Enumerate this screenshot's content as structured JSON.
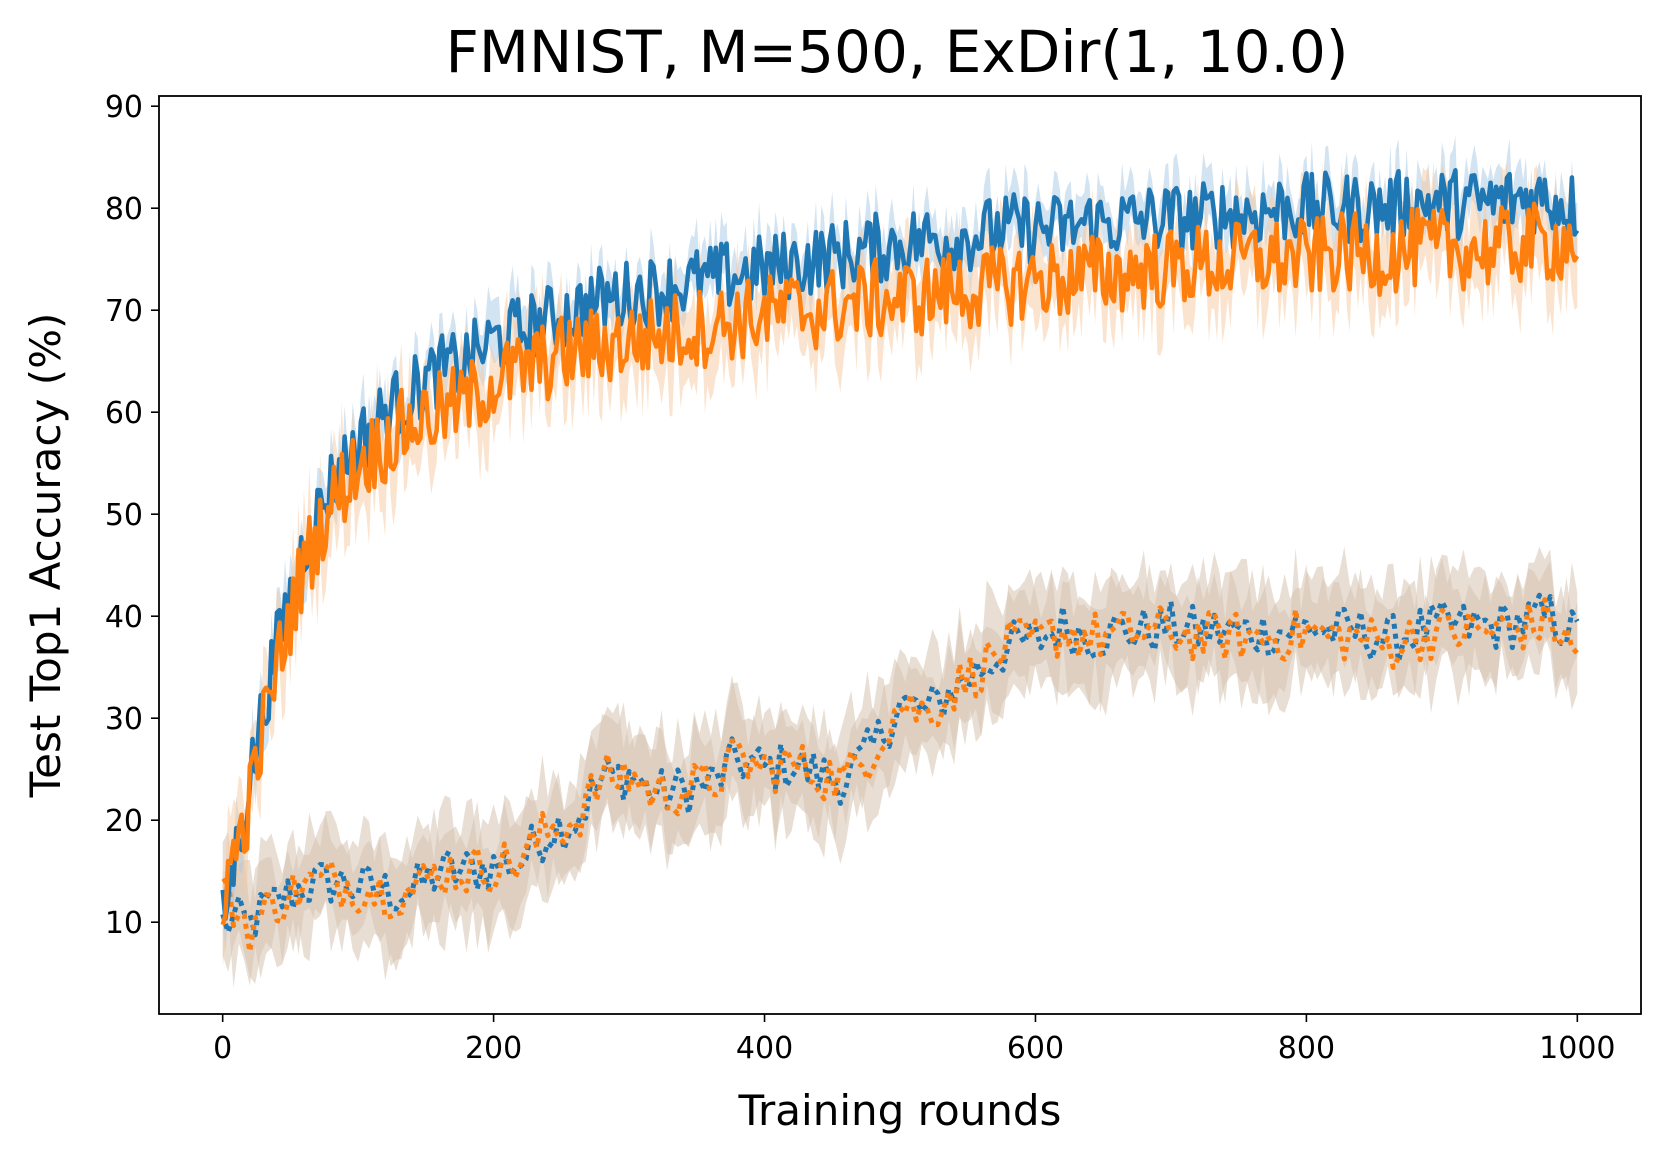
{
  "chart_data": {
    "type": "line",
    "title": "FMNIST, M=500, ExDir(1, 10.0)",
    "xlabel": "Training rounds",
    "ylabel": "Test Top1 Accuracy (%)",
    "xlim": [
      -47,
      1047
    ],
    "ylim": [
      1,
      91
    ],
    "xticks": [
      0,
      200,
      400,
      600,
      800,
      1000
    ],
    "yticks": [
      10,
      20,
      30,
      40,
      50,
      60,
      70,
      80,
      90
    ],
    "legend": "none",
    "colors": {
      "blue": "#1f77b4",
      "orange": "#ff7f0e",
      "blue_band": "#a6c8e4",
      "orange_band": "#f8c9a0",
      "mixed_band": "#d6c3b0"
    },
    "series": [
      {
        "name": "solid-blue",
        "style": "solid",
        "color": "#1f77b4",
        "band_color": "#a6c8e4",
        "x": [
          0,
          10,
          20,
          30,
          40,
          50,
          60,
          70,
          80,
          100,
          120,
          140,
          160,
          180,
          200,
          220,
          240,
          260,
          280,
          300,
          320,
          340,
          360,
          380,
          400,
          420,
          440,
          460,
          480,
          500,
          520,
          540,
          560,
          580,
          600,
          620,
          640,
          660,
          680,
          700,
          720,
          740,
          760,
          780,
          800,
          820,
          840,
          860,
          880,
          900,
          920,
          940,
          960,
          980,
          1000
        ],
        "values": [
          10,
          17,
          24,
          31,
          37,
          42,
          47,
          50,
          53,
          57,
          60,
          62,
          64,
          65,
          67,
          68,
          69,
          70,
          71,
          71.5,
          72,
          72.5,
          73,
          73.5,
          74,
          74.5,
          75,
          75.5,
          76,
          76.5,
          77,
          77,
          77.5,
          78,
          78,
          78,
          78.5,
          78.5,
          79,
          79,
          79,
          79.5,
          79.5,
          80,
          80,
          80,
          80,
          80,
          80.5,
          80.5,
          80.5,
          80.5,
          81,
          81,
          80
        ],
        "band": 2.5,
        "noise": 3.5
      },
      {
        "name": "solid-orange",
        "style": "solid",
        "color": "#ff7f0e",
        "band_color": "#f8c9a0",
        "x": [
          0,
          10,
          20,
          30,
          40,
          50,
          60,
          70,
          80,
          100,
          120,
          140,
          160,
          180,
          200,
          220,
          240,
          260,
          280,
          300,
          320,
          340,
          360,
          380,
          400,
          420,
          440,
          460,
          480,
          500,
          520,
          540,
          560,
          580,
          600,
          620,
          640,
          660,
          680,
          700,
          720,
          740,
          760,
          780,
          800,
          820,
          840,
          860,
          880,
          900,
          920,
          940,
          960,
          980,
          1000
        ],
        "values": [
          13,
          17,
          22,
          29,
          35,
          40,
          45,
          48,
          51,
          55,
          57,
          59,
          60,
          61,
          63,
          64,
          65,
          66,
          66.5,
          67,
          67.5,
          68,
          68.5,
          69,
          69.5,
          70,
          70,
          70.5,
          71,
          71,
          71.5,
          72,
          72,
          72.5,
          73,
          73,
          73.5,
          73.5,
          74,
          74,
          74.5,
          74.5,
          75,
          75,
          75,
          75.5,
          75.5,
          75.5,
          76,
          76,
          76,
          76,
          76.5,
          76.5,
          77
        ],
        "band": 4,
        "noise": 4
      },
      {
        "name": "dotted-blue",
        "style": "dotted",
        "color": "#1f77b4",
        "band_color": "#d6c3b0",
        "x": [
          0,
          20,
          40,
          60,
          80,
          100,
          120,
          140,
          160,
          180,
          200,
          220,
          240,
          260,
          280,
          300,
          320,
          340,
          360,
          380,
          400,
          420,
          440,
          460,
          480,
          500,
          520,
          540,
          560,
          580,
          600,
          620,
          640,
          660,
          680,
          700,
          720,
          740,
          760,
          780,
          800,
          820,
          840,
          860,
          880,
          900,
          920,
          940,
          960,
          980,
          1000
        ],
        "values": [
          10,
          10,
          12,
          13.5,
          14,
          13.5,
          13,
          13,
          15,
          15,
          15.5,
          16,
          19,
          20,
          24,
          24.5,
          22.5,
          23,
          23.5,
          26,
          25,
          25.5,
          24.5,
          24,
          27,
          31.5,
          30.5,
          33,
          35,
          37,
          37.5,
          39,
          38,
          38.5,
          38.5,
          39,
          38.5,
          38.5,
          38.5,
          38.5,
          39,
          38.5,
          38.5,
          37.5,
          38.5,
          39,
          39,
          39,
          39.5,
          40,
          38
        ],
        "band": 4.5,
        "noise": 2.5
      },
      {
        "name": "dotted-orange",
        "style": "dotted",
        "color": "#ff7f0e",
        "band_color": "#d6c3b0",
        "x": [
          0,
          20,
          40,
          60,
          80,
          100,
          120,
          140,
          160,
          180,
          200,
          220,
          240,
          260,
          280,
          300,
          320,
          340,
          360,
          380,
          400,
          420,
          440,
          460,
          480,
          500,
          520,
          540,
          560,
          580,
          600,
          620,
          640,
          660,
          680,
          700,
          720,
          740,
          760,
          780,
          800,
          820,
          840,
          860,
          880,
          900,
          920,
          940,
          960,
          980,
          1000
        ],
        "values": [
          13,
          9.5,
          12,
          13.5,
          14,
          13.5,
          13,
          13,
          15,
          15,
          15.5,
          16,
          19,
          20,
          24,
          24.5,
          22.5,
          23,
          23.5,
          26,
          25,
          25.5,
          24.5,
          24,
          27,
          31.5,
          30.5,
          33,
          35,
          37,
          37.5,
          38.5,
          38,
          38,
          38.5,
          38.5,
          38,
          38,
          38,
          38,
          38.5,
          38,
          38,
          37,
          38,
          38.5,
          38.5,
          38.5,
          39,
          39.5,
          36
        ],
        "band": 4.5,
        "noise": 2.5
      }
    ]
  }
}
